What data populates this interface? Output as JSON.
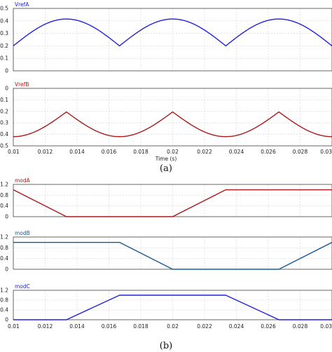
{
  "chart_data": [
    {
      "type": "line",
      "series": [
        {
          "name": "VrefA",
          "color": "#2222dd",
          "x": [],
          "y": []
        }
      ],
      "xlim": [
        0.01,
        0.03
      ],
      "ylim": [
        0,
        0.5
      ],
      "yticks": [
        "0",
        "0.1",
        "0.2",
        "0.3",
        "0.4",
        "0.5"
      ],
      "grid": true
    },
    {
      "type": "line",
      "series": [
        {
          "name": "VrefB",
          "color": "#aa1a1a",
          "x": [],
          "y": []
        }
      ],
      "xlim": [
        0.01,
        0.03
      ],
      "ylim": [
        -0.5,
        0
      ],
      "yticks": [
        "0",
        "-0.1",
        "-0.2",
        "-0.3",
        "-0.4",
        "-0.5"
      ],
      "xticks": [
        "0.01",
        "0.012",
        "0.014",
        "0.016",
        "0.018",
        "0.02",
        "0.022",
        "0.024",
        "0.026",
        "0.028",
        "0.03"
      ],
      "xlabel": "Time (s)",
      "grid": true
    },
    {
      "type": "line",
      "series": [
        {
          "name": "modA",
          "color": "#aa1a1a",
          "x": [
            0.01,
            0.013333,
            0.016667,
            0.02,
            0.023333,
            0.026667,
            0.03
          ],
          "y": [
            1.0,
            0.0,
            0.0,
            0.0,
            1.0,
            1.0,
            1.0
          ]
        }
      ],
      "xlim": [
        0.01,
        0.03
      ],
      "ylim": [
        0,
        1.2
      ],
      "yticks": [
        "0",
        "0.4",
        "0.8",
        "1.2"
      ],
      "grid": true
    },
    {
      "type": "line",
      "series": [
        {
          "name": "modB",
          "color": "#1a5a9a",
          "x": [
            0.01,
            0.013333,
            0.016667,
            0.02,
            0.023333,
            0.026667,
            0.03
          ],
          "y": [
            1.0,
            1.0,
            1.0,
            0.0,
            0.0,
            0.0,
            1.0
          ]
        }
      ],
      "xlim": [
        0.01,
        0.03
      ],
      "ylim": [
        0,
        1.2
      ],
      "yticks": [
        "0",
        "0.4",
        "0.8",
        "1.2"
      ],
      "grid": true
    },
    {
      "type": "line",
      "series": [
        {
          "name": "modC",
          "color": "#2222dd",
          "x": [
            0.01,
            0.013333,
            0.016667,
            0.02,
            0.023333,
            0.026667,
            0.03
          ],
          "y": [
            0.0,
            0.0,
            1.0,
            1.0,
            1.0,
            0.0,
            0.0
          ]
        }
      ],
      "xlim": [
        0.01,
        0.03
      ],
      "ylim": [
        0,
        1.2
      ],
      "yticks": [
        "0",
        "0.4",
        "0.8",
        "1.2"
      ],
      "xticks": [
        "0.01",
        "0.012",
        "0.014",
        "0.016",
        "0.018",
        "0.02",
        "0.022",
        "0.024",
        "0.026",
        "0.028",
        "0.03"
      ],
      "grid": true
    }
  ],
  "captions": {
    "a": "(a)",
    "b": "(b)"
  }
}
